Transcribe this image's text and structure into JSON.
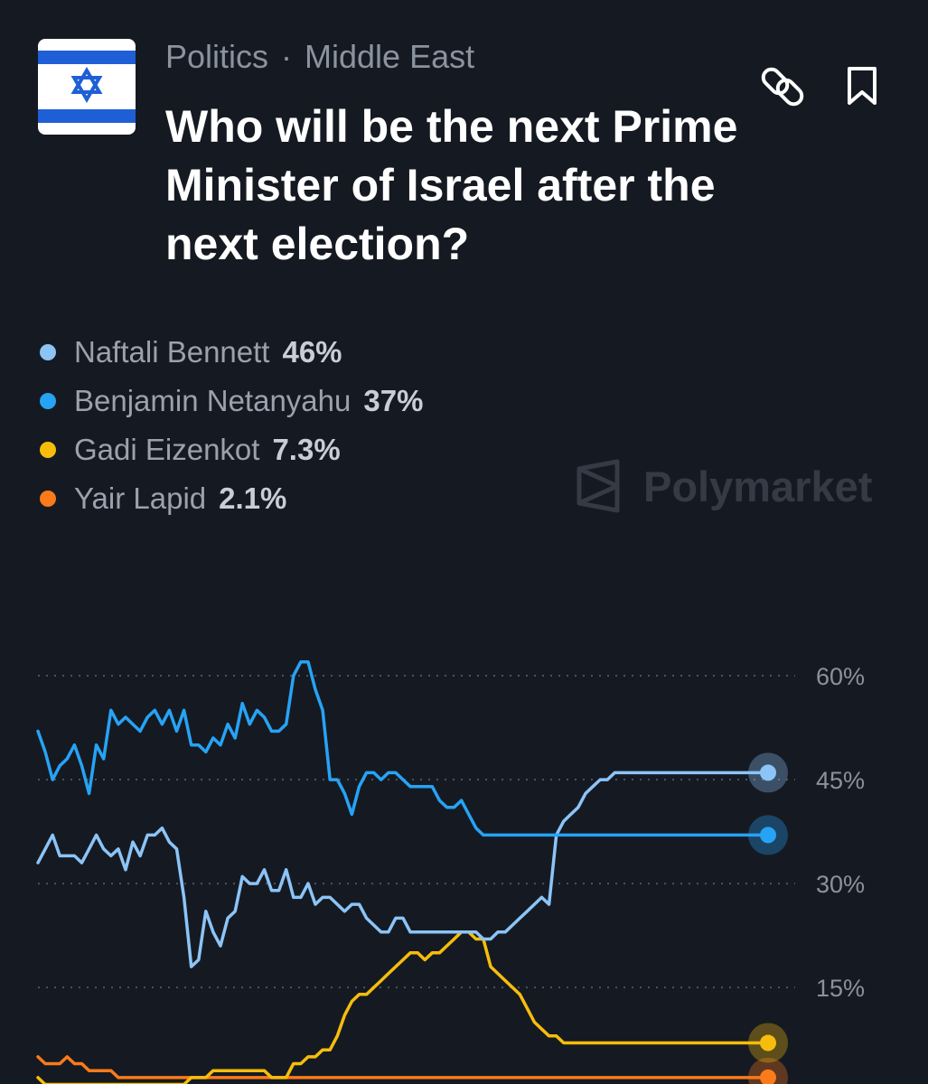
{
  "header": {
    "category": "Politics",
    "subcategory": "Middle East",
    "title": "Who will be the next Prime Minister of Israel after the next election?",
    "flag_icon": "israel-flag-icon",
    "link_icon": "link-icon",
    "bookmark_icon": "bookmark-icon"
  },
  "watermark": {
    "text": "Polymarket",
    "icon": "polymarket-logo-icon"
  },
  "colors": {
    "background": "#151a22",
    "bennett": "#8cc4f7",
    "netanyahu": "#27a3f5",
    "eizenkot": "#f7bd0c",
    "lapid": "#fb7a1a",
    "grid": "#4a5260"
  },
  "chart_data": {
    "type": "line",
    "title": "",
    "xlabel": "",
    "ylabel": "",
    "ylim": [
      0,
      65
    ],
    "yticks": [
      "60%",
      "45%",
      "30%",
      "15%"
    ],
    "ytick_values": [
      60,
      45,
      30,
      15
    ],
    "grid": "horizontal dotted",
    "legend_position": "top-left",
    "x": [
      0,
      1,
      2,
      3,
      4,
      5,
      6,
      7,
      8,
      9,
      10,
      11,
      12,
      13,
      14,
      15,
      16,
      17,
      18,
      19,
      20,
      21,
      22,
      23,
      24,
      25,
      26,
      27,
      28,
      29,
      30,
      31,
      32,
      33,
      34,
      35,
      36,
      37,
      38,
      39,
      40,
      41,
      42,
      43,
      44,
      45,
      46,
      47,
      48,
      49,
      50,
      51,
      52,
      53,
      54,
      55,
      56,
      57,
      58,
      59,
      60,
      61,
      62,
      63,
      64,
      65,
      66,
      67,
      68,
      69,
      70,
      71,
      72,
      73,
      74,
      75,
      76,
      77,
      78,
      79,
      80,
      81,
      82,
      83,
      84,
      85,
      86,
      87,
      88,
      89,
      90,
      91,
      92,
      93,
      94,
      95,
      96,
      97,
      98,
      99,
      100
    ],
    "series": [
      {
        "name": "Naftali Bennett",
        "value_label": "46%",
        "color": "#8cc4f7",
        "values": [
          33,
          35,
          37,
          34,
          34,
          34,
          33,
          35,
          37,
          35,
          34,
          35,
          32,
          36,
          34,
          37,
          37,
          38,
          36,
          35,
          28,
          18,
          19,
          26,
          23,
          21,
          25,
          26,
          31,
          30,
          30,
          32,
          29,
          29,
          32,
          28,
          28,
          30,
          27,
          28,
          28,
          27,
          26,
          27,
          27,
          25,
          24,
          23,
          23,
          25,
          25,
          23,
          23,
          23,
          23,
          23,
          23,
          23,
          23,
          23,
          23,
          22,
          22,
          23,
          23,
          24,
          25,
          26,
          27,
          28,
          27,
          37,
          39,
          40,
          41,
          43,
          44,
          45,
          45,
          46,
          46,
          46,
          46,
          46,
          46,
          46,
          46,
          46,
          46,
          46,
          46,
          46,
          46,
          46,
          46,
          46,
          46,
          46,
          46,
          46,
          46
        ]
      },
      {
        "name": "Benjamin Netanyahu",
        "value_label": "37%",
        "color": "#27a3f5",
        "values": [
          52,
          49,
          45,
          47,
          48,
          50,
          47,
          43,
          50,
          48,
          55,
          53,
          54,
          53,
          52,
          54,
          55,
          53,
          55,
          52,
          55,
          50,
          50,
          49,
          51,
          50,
          53,
          51,
          56,
          53,
          55,
          54,
          52,
          52,
          53,
          60,
          62,
          62,
          58,
          55,
          45,
          45,
          43,
          40,
          44,
          46,
          46,
          45,
          46,
          46,
          45,
          44,
          44,
          44,
          44,
          42,
          41,
          41,
          42,
          40,
          38,
          37,
          37,
          37,
          37,
          37,
          37,
          37,
          37,
          37,
          37,
          37,
          37,
          37,
          37,
          37,
          37,
          37,
          37,
          37,
          37,
          37,
          37,
          37,
          37,
          37,
          37,
          37,
          37,
          37,
          37,
          37,
          37,
          37,
          37,
          37,
          37,
          37,
          37,
          37,
          37
        ]
      },
      {
        "name": "Gadi Eizenkot",
        "value_label": "7.3%",
        "color": "#f7bd0c",
        "values": [
          2,
          1,
          1,
          1,
          1,
          1,
          1,
          1,
          1,
          1,
          1,
          1,
          1,
          1,
          1,
          1,
          1,
          1,
          1,
          1,
          1,
          2,
          2,
          2,
          3,
          3,
          3,
          3,
          3,
          3,
          3,
          3,
          2,
          2,
          2,
          4,
          4,
          5,
          5,
          6,
          6,
          8,
          11,
          13,
          14,
          14,
          15,
          16,
          17,
          18,
          19,
          20,
          20,
          19,
          20,
          20,
          21,
          22,
          23,
          23,
          22,
          22,
          18,
          17,
          16,
          15,
          14,
          12,
          10,
          9,
          8,
          8,
          7,
          7,
          7,
          7,
          7,
          7,
          7,
          7,
          7,
          7,
          7,
          7,
          7,
          7,
          7,
          7,
          7,
          7,
          7,
          7,
          7,
          7,
          7,
          7,
          7,
          7,
          7,
          7,
          7
        ]
      },
      {
        "name": "Yair Lapid",
        "value_label": "2.1%",
        "color": "#fb7a1a",
        "values": [
          5,
          4,
          4,
          4,
          5,
          4,
          4,
          3,
          3,
          3,
          3,
          2,
          2,
          2,
          2,
          2,
          2,
          2,
          2,
          2,
          2,
          2,
          2,
          2,
          2,
          2,
          2,
          2,
          2,
          2,
          2,
          2,
          2,
          2,
          2,
          2,
          2,
          2,
          2,
          2,
          2,
          2,
          2,
          2,
          2,
          2,
          2,
          2,
          2,
          2,
          2,
          2,
          2,
          2,
          2,
          2,
          2,
          2,
          2,
          2,
          2,
          2,
          2,
          2,
          2,
          2,
          2,
          2,
          2,
          2,
          2,
          2,
          2,
          2,
          2,
          2,
          2,
          2,
          2,
          2,
          2,
          2,
          2,
          2,
          2,
          2,
          2,
          2,
          2,
          2,
          2,
          2,
          2,
          2,
          2,
          2,
          2,
          2,
          2,
          2,
          2
        ]
      }
    ]
  }
}
